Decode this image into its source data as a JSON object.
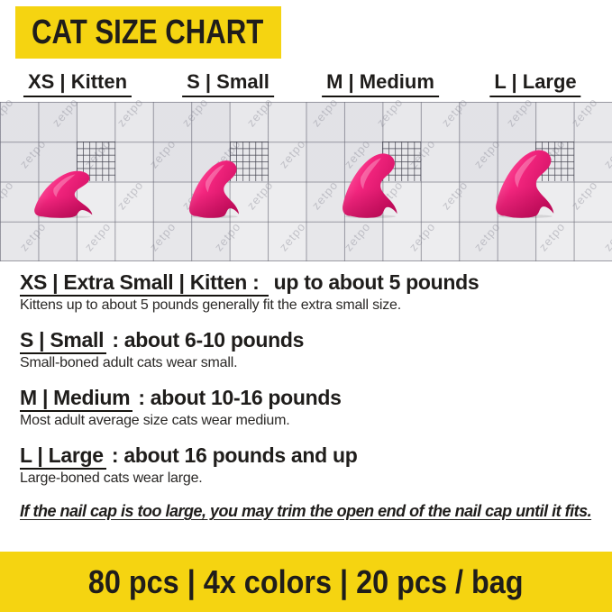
{
  "header": {
    "title": "CAT SIZE CHART"
  },
  "size_labels": [
    {
      "label": "XS | Kitten"
    },
    {
      "label": "S | Small"
    },
    {
      "label": "M | Medium"
    },
    {
      "label": "L | Large"
    }
  ],
  "chart": {
    "watermark": "zetpo",
    "cap_count": 4,
    "cap_sizes": [
      "XS",
      "S",
      "M",
      "L"
    ]
  },
  "sections": [
    {
      "underlined": "XS | Extra Small | Kitten :",
      "rest": " up to about 5 pounds",
      "description": "Kittens up to about 5 pounds generally fit the extra small size."
    },
    {
      "underlined": "S | Small",
      "rest": " : about 6-10 pounds",
      "description": "Small-boned adult cats wear small."
    },
    {
      "underlined": "M | Medium",
      "rest": " : about 10-16 pounds",
      "description": "Most adult average size cats wear medium."
    },
    {
      "underlined": "L | Large",
      "rest": " : about 16 pounds and up",
      "description": "Large-boned cats wear large."
    }
  ],
  "note": "If the nail cap is too large, you may trim the open end of the nail cap until it fits.",
  "footer": {
    "text": "80 pcs | 4x colors | 20 pcs / bag"
  },
  "colors": {
    "banner_yellow": "#F5D411",
    "cap_pink": "#F4267F",
    "cap_pink_light": "#FF74AE",
    "cap_pink_dark": "#CE0F62",
    "grid_bg": "#EDEDEF",
    "grid_line": "#6E6E7A",
    "text_black": "#1F1D1B"
  }
}
